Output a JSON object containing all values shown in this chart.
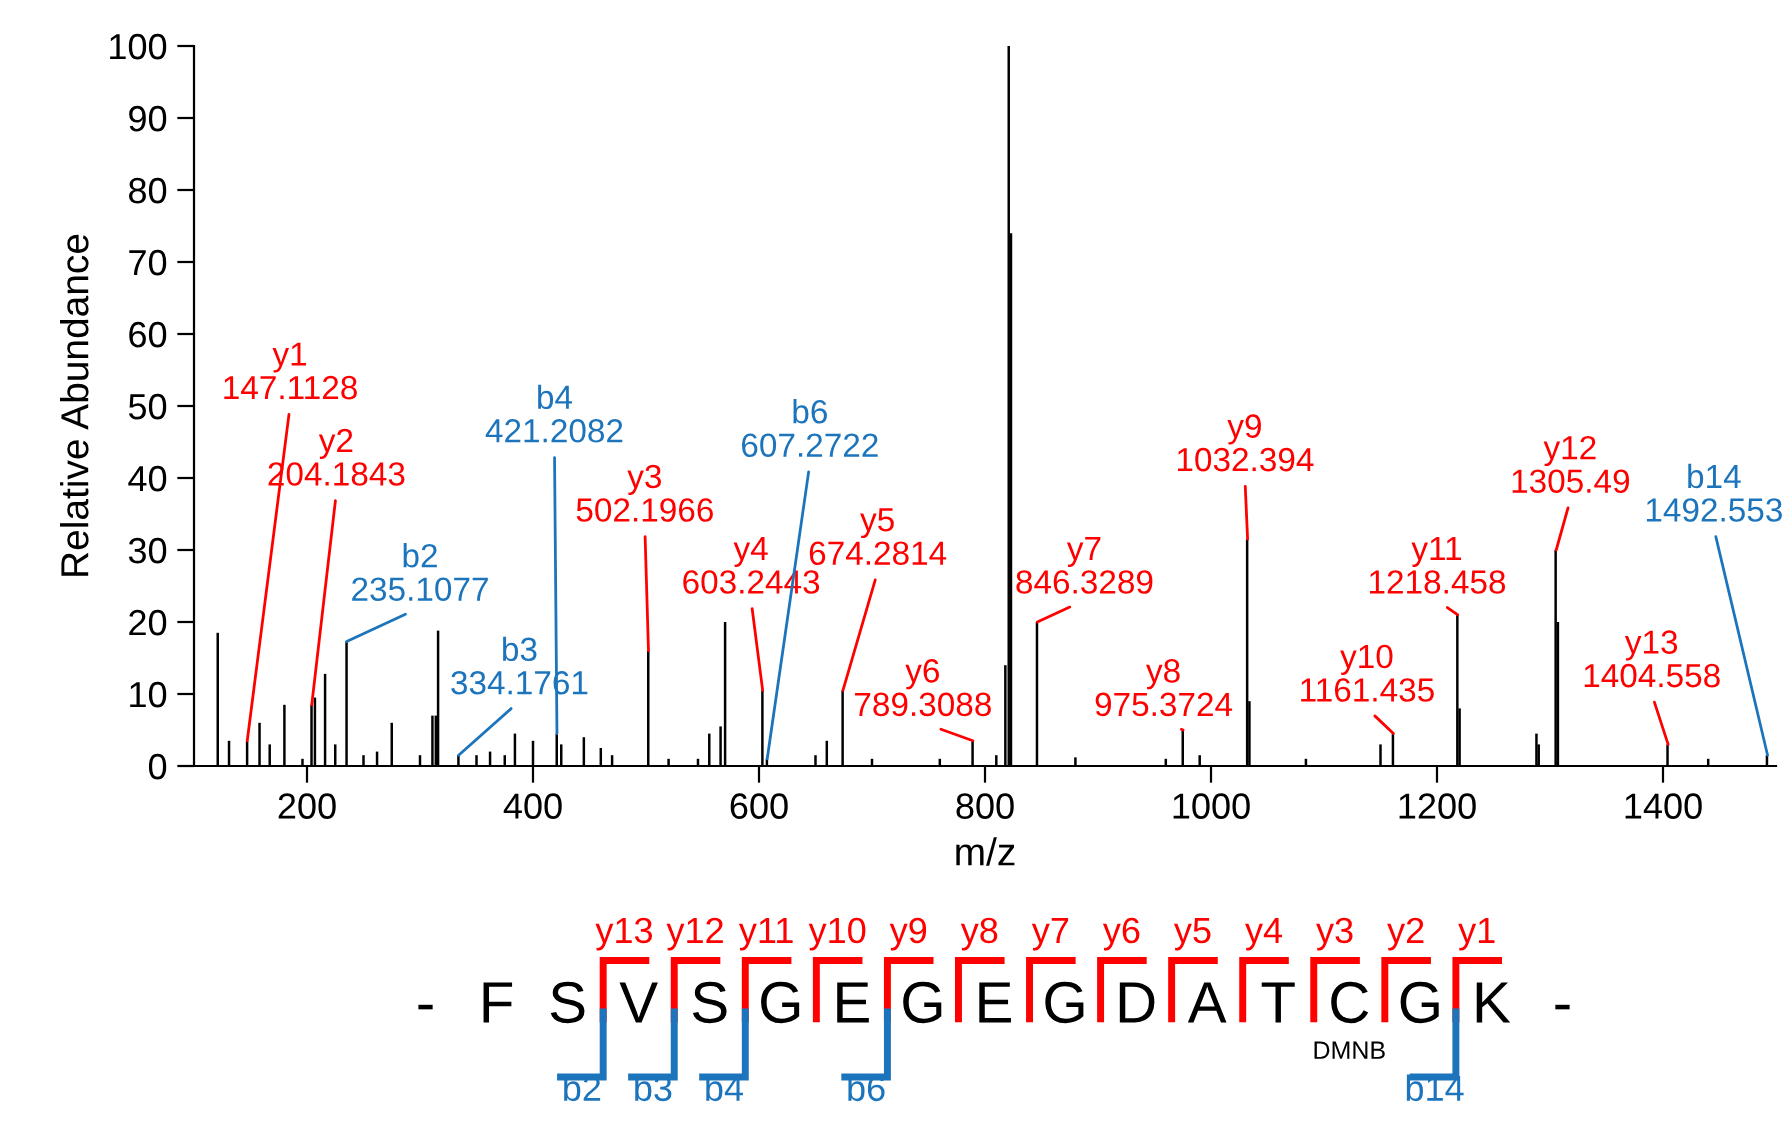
{
  "chart_data": [
    {
      "type": "bar",
      "xlabel": "m/z",
      "ylabel": "Relative Abundance",
      "color": "#000000",
      "x": [
        121,
        131,
        147,
        158,
        167,
        180,
        196,
        204,
        207,
        216,
        225,
        235,
        250,
        262,
        275,
        300,
        311,
        314,
        316,
        334,
        350,
        362,
        375,
        384,
        400,
        421,
        425,
        445,
        460,
        470,
        502,
        520,
        546,
        556,
        566,
        570,
        603,
        607,
        650,
        660,
        674,
        700,
        760,
        789,
        810,
        818,
        821,
        823,
        846,
        880,
        960,
        975,
        990,
        1032,
        1034,
        1084,
        1150,
        1161,
        1218,
        1220,
        1288,
        1290,
        1305,
        1307,
        1404,
        1440,
        1492
      ],
      "values": [
        18.5,
        3.5,
        3.5,
        6,
        3,
        8.5,
        1,
        8.5,
        9.5,
        12.8,
        3,
        17.3,
        1.5,
        2,
        6,
        1.5,
        7,
        7,
        18.8,
        1.5,
        1.5,
        2,
        1.5,
        4.5,
        3.5,
        4.5,
        3,
        4,
        2.5,
        1.5,
        16,
        1,
        1,
        4.5,
        5.5,
        20,
        10.5,
        1,
        1.5,
        3.5,
        10.5,
        1,
        1,
        3.5,
        1.5,
        14,
        100,
        74,
        20,
        1.2,
        1,
        5,
        1.5,
        31.5,
        9,
        1,
        3,
        4.5,
        21,
        8,
        4.5,
        3,
        30,
        20,
        3,
        1,
        1.5
      ],
      "xlim": [
        100,
        1500
      ],
      "xticks": [
        200,
        400,
        600,
        800,
        1000,
        1200,
        1400
      ],
      "ylim": [
        0,
        100
      ],
      "yticks": [
        0,
        10,
        20,
        30,
        40,
        50,
        60,
        70,
        80,
        90,
        100
      ],
      "grid": false,
      "legend": false,
      "annotations": [
        {
          "text": "y1\n147.1128",
          "x": 147.1128,
          "y": 3.5
        },
        {
          "text": "y2\n204.1843",
          "x": 204.1843,
          "y": 8.5
        },
        {
          "text": "b2\n235.1077",
          "x": 235.1077,
          "y": 17.3
        },
        {
          "text": "b3\n334.1761",
          "x": 334.1761,
          "y": 1.5
        },
        {
          "text": "b4\n421.2082",
          "x": 421.2082,
          "y": 4.5
        },
        {
          "text": "y3\n502.1966",
          "x": 502.1966,
          "y": 16
        },
        {
          "text": "y4\n603.2443",
          "x": 603.2443,
          "y": 10.5
        },
        {
          "text": "b6\n607.2722",
          "x": 607.2722,
          "y": 1
        },
        {
          "text": "y5\n674.2814",
          "x": 674.2814,
          "y": 10.5
        },
        {
          "text": "y6\n789.3088",
          "x": 789.3088,
          "y": 3.5
        },
        {
          "text": "y7\n846.3289",
          "x": 846.3289,
          "y": 20
        },
        {
          "text": "y8\n975.3724",
          "x": 975.3724,
          "y": 5
        },
        {
          "text": "y9\n1032.394",
          "x": 1032.394,
          "y": 31.5
        },
        {
          "text": "y10\n1161.435",
          "x": 1161.435,
          "y": 4.5
        },
        {
          "text": "y11\n1218.458",
          "x": 1218.458,
          "y": 21
        },
        {
          "text": "y12\n1305.49",
          "x": 1305.49,
          "y": 30
        },
        {
          "text": "y13\n1404.558",
          "x": 1404.558,
          "y": 3
        },
        {
          "text": "b14\n1492.553",
          "x": 1492.553,
          "y": 1.5
        }
      ]
    },
    {
      "type": "other",
      "categories": [
        "-",
        "F",
        "S",
        "V",
        "S",
        "G",
        "E",
        "G",
        "E",
        "G",
        "D",
        "A",
        "T",
        "C",
        "G",
        "K",
        "-"
      ],
      "annotations": [
        "y13",
        "y12",
        "y11",
        "y10",
        "y9",
        "y8",
        "y7",
        "y6",
        "y5",
        "y4",
        "y3",
        "y2",
        "y1",
        "b2",
        "b3",
        "b4",
        "b6",
        "b14",
        "DMNB"
      ]
    }
  ]
}
